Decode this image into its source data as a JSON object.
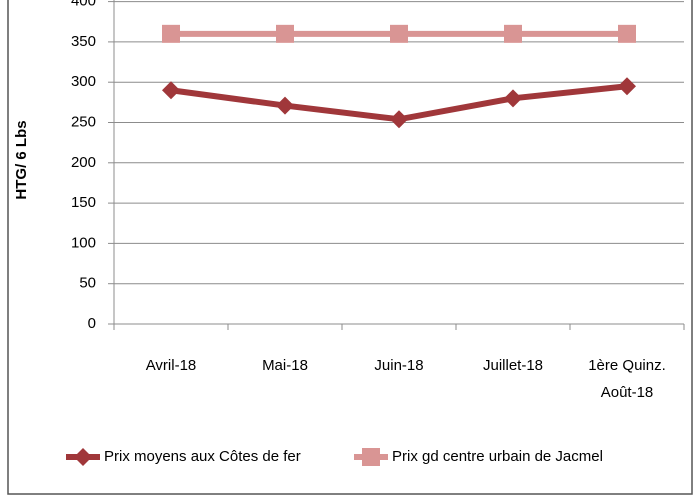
{
  "chart_data": {
    "type": "line",
    "y_label": "HTG/ 6 Lbs",
    "categories": [
      "Avril-18",
      "Mai-18",
      "Juin-18",
      "Juillet-18",
      "1ère Quinz. Août-18"
    ],
    "series": [
      {
        "name": "Prix moyens aux Côtes de fer",
        "color": "#a0373a",
        "marker": "diamond",
        "values": [
          290,
          271,
          254,
          280,
          295
        ]
      },
      {
        "name": "Prix gd centre urbain de Jacmel",
        "color": "#d99594",
        "marker": "square",
        "values": [
          360,
          360,
          360,
          360,
          360
        ]
      }
    ],
    "ylim": [
      0,
      400
    ],
    "yticks": [
      0,
      50,
      100,
      150,
      200,
      250,
      300,
      350,
      400
    ],
    "grid": true,
    "legend": "bottom"
  }
}
